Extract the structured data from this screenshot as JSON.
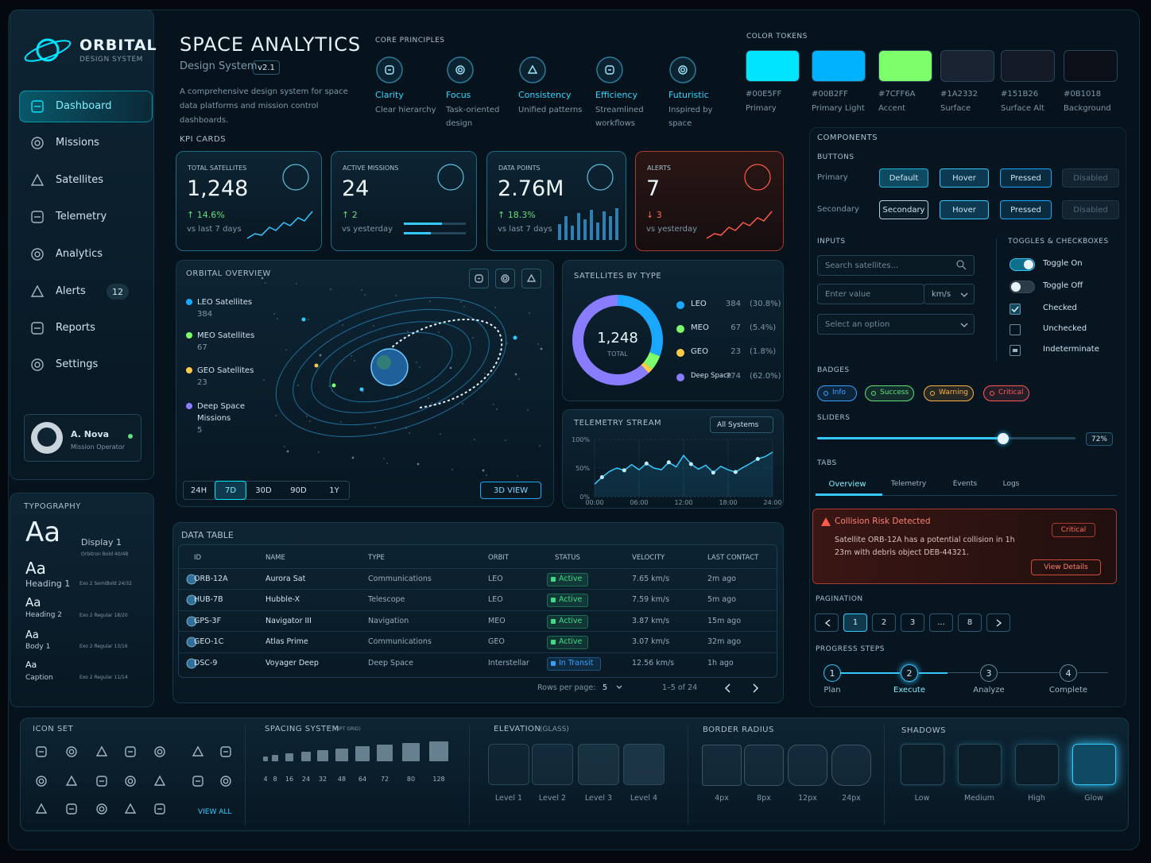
{
  "sidebar": {
    "brand": "ORBITAL",
    "brand_sub": "DESIGN SYSTEM",
    "nav": [
      {
        "label": "Dashboard"
      },
      {
        "label": "Missions"
      },
      {
        "label": "Satellites"
      },
      {
        "label": "Telemetry"
      },
      {
        "label": "Analytics"
      },
      {
        "label": "Alerts",
        "badge": 12
      },
      {
        "label": "Reports"
      },
      {
        "label": "Settings"
      }
    ],
    "user": {
      "name": "A. Nova",
      "role": "Mission Operator"
    }
  },
  "typography": {
    "title": "TYPOGRAPHY",
    "samples": [
      {
        "sample": "Aa",
        "name": "Display 1",
        "spec": "Orbitron Bold  40/48"
      },
      {
        "sample": "Aa",
        "name": "Heading 1",
        "spec": "Exo 2 SemiBold  24/32"
      },
      {
        "sample": "Aa",
        "name": "Heading 2",
        "spec": "Exo 2 Regular  18/20"
      },
      {
        "sample": "Aa",
        "name": "Body 1",
        "spec": "Exo 2 Regular  13/16"
      },
      {
        "sample": "Aa",
        "name": "Caption",
        "spec": "Exo 2 Regular  11/14"
      }
    ]
  },
  "header": {
    "title": "SPACE ANALYTICS",
    "subtitle": "Design System",
    "version": "v2.1",
    "description": "A comprehensive design system for space data platforms and mission control dashboards."
  },
  "core_principles": {
    "title": "CORE PRINCIPLES",
    "items": [
      {
        "name": "Clarity",
        "desc": "Clear hierarchy"
      },
      {
        "name": "Focus",
        "desc": "Task-oriented design"
      },
      {
        "name": "Consistency",
        "desc": "Unified patterns"
      },
      {
        "name": "Efficiency",
        "desc": "Streamlined workflows"
      },
      {
        "name": "Futuristic",
        "desc": "Inspired by space"
      }
    ]
  },
  "color_tokens": {
    "title": "COLOR TOKENS",
    "items": [
      {
        "hex": "#00E5FF",
        "name": "Primary"
      },
      {
        "hex": "#00B2FF",
        "name": "Primary Light"
      },
      {
        "hex": "#7CFF6A",
        "name": "Accent"
      },
      {
        "hex": "#1A2332",
        "name": "Surface"
      },
      {
        "hex": "#151B26",
        "name": "Surface Alt"
      },
      {
        "hex": "#0B1018",
        "name": "Background"
      }
    ]
  },
  "kpi_cards": {
    "title": "KPI CARDS",
    "cards": [
      {
        "label": "TOTAL SATELLITES",
        "value": "1,248",
        "change": "↑ 14.6%",
        "note": "vs last 7 days"
      },
      {
        "label": "ACTIVE MISSIONS",
        "value": "24",
        "change": "↑ 2",
        "note": "vs yesterday"
      },
      {
        "label": "DATA POINTS",
        "value": "2.76M",
        "change": "↑ 18.3%",
        "note": "vs last 7 days"
      },
      {
        "label": "ALERTS",
        "value": "7",
        "change": "↓ 3",
        "note": "vs yesterday"
      }
    ]
  },
  "orbital_overview": {
    "title": "ORBITAL OVERVIEW",
    "legend": [
      {
        "name": "LEO Satellites",
        "count": 384,
        "color": "#1aa8ff"
      },
      {
        "name": "MEO Satellites",
        "count": 67,
        "color": "#7cff6a"
      },
      {
        "name": "GEO Satellites",
        "count": 23,
        "color": "#ffc94a"
      },
      {
        "name": "Deep Space Missions",
        "count": 5,
        "color": "#8a7cff"
      }
    ],
    "ranges": [
      "24H",
      "7D",
      "30D",
      "90D",
      "1Y"
    ],
    "active_range": 1,
    "button": "3D VIEW"
  },
  "satellites_by_type": {
    "title": "SATELLITES BY TYPE",
    "total": "1,248",
    "total_label": "TOTAL",
    "series": [
      {
        "name": "LEO",
        "value": 384,
        "pct": "(30.8%)",
        "color": "#1aa8ff"
      },
      {
        "name": "MEO",
        "value": 67,
        "pct": "(5.4%)",
        "color": "#7cff6a"
      },
      {
        "name": "GEO",
        "value": 23,
        "pct": "(1.8%)",
        "color": "#ffc94a"
      },
      {
        "name": "Deep Space",
        "value": 774,
        "pct": "(62.0%)",
        "color": "#8a7cff"
      }
    ]
  },
  "telemetry": {
    "title": "TELEMETRY STREAM",
    "filter": "All Systems",
    "color": "#35c8ff",
    "x": [
      0,
      1,
      2,
      3,
      4,
      5,
      6,
      7,
      8,
      9,
      10,
      11,
      12,
      13,
      14,
      15,
      16,
      17,
      18,
      19,
      20,
      21,
      22,
      23,
      24
    ],
    "values": [
      22,
      34,
      44,
      50,
      46,
      56,
      47,
      58,
      50,
      47,
      60,
      52,
      72,
      57,
      48,
      55,
      42,
      53,
      47,
      43,
      51,
      58,
      66,
      70,
      78
    ],
    "xlim": [
      0,
      24
    ],
    "xticks": [
      {
        "value": 0,
        "label": "00:00"
      },
      {
        "value": 6,
        "label": "06:00"
      },
      {
        "value": 12,
        "label": "12:00"
      },
      {
        "value": 18,
        "label": "18:00"
      },
      {
        "value": 24,
        "label": "24:00"
      }
    ],
    "ylim": [
      0,
      100
    ],
    "yticks": [
      {
        "value": 0,
        "label": "0%"
      },
      {
        "value": 50,
        "label": "50%"
      },
      {
        "value": 100,
        "label": "100%"
      }
    ]
  },
  "data_table": {
    "title": "DATA TABLE",
    "columns": [
      "ID",
      "NAME",
      "TYPE",
      "ORBIT",
      "STATUS",
      "VELOCITY",
      "LAST CONTACT"
    ],
    "rows": [
      [
        "ORB-12A",
        "Aurora Sat",
        "Communications",
        "LEO",
        "Active",
        "7.65 km/s",
        "2m ago"
      ],
      [
        "HUB-7B",
        "Hubble-X",
        "Telescope",
        "LEO",
        "Active",
        "7.59 km/s",
        "5m ago"
      ],
      [
        "GPS-3F",
        "Navigator III",
        "Navigation",
        "MEO",
        "Active",
        "3.87 km/s",
        "15m ago"
      ],
      [
        "GEO-1C",
        "Atlas Prime",
        "Communications",
        "GEO",
        "Active",
        "3.07 km/s",
        "32m ago"
      ],
      [
        "DSC-9",
        "Voyager Deep",
        "Deep Space",
        "Interstellar",
        "In Transit",
        "12.56 km/s",
        "1h ago"
      ]
    ],
    "status_colors": [
      "#3ddc84",
      "#3ddc84",
      "#3ddc84",
      "#3ddc84",
      "#3aa0ff"
    ],
    "rows_per_page_label": "Rows per page:",
    "rows_per_page": 5,
    "range": "1–5 of 24"
  },
  "components": {
    "title": "COMPONENTS",
    "buttons": {
      "title": "BUTTONS",
      "rows": [
        {
          "label": "Primary",
          "states": [
            "Default",
            "Hover",
            "Pressed",
            "Disabled"
          ]
        },
        {
          "label": "Secondary",
          "states": [
            "Secondary",
            "Hover",
            "Pressed",
            "Disabled"
          ]
        }
      ]
    },
    "inputs": {
      "title": "INPUTS",
      "search": "Search satellites...",
      "value_placeholder": "Enter value",
      "unit": "km/s",
      "select": "Select an option"
    },
    "toggles": {
      "title": "TOGGLES & CHECKBOXES",
      "items": [
        "Toggle On",
        "Toggle Off",
        "Checked",
        "Unchecked",
        "Indeterminate"
      ]
    },
    "badges": {
      "title": "BADGES",
      "items": [
        {
          "label": "Info",
          "color": "#3aa0ff"
        },
        {
          "label": "Success",
          "color": "#5fe07a"
        },
        {
          "label": "Warning",
          "color": "#ffb340"
        },
        {
          "label": "Critical",
          "color": "#ff5a5a"
        }
      ]
    },
    "sliders": {
      "title": "SLIDERS",
      "value": 72,
      "label": "72%"
    },
    "tabs": {
      "title": "TABS",
      "items": [
        "Overview",
        "Telemetry",
        "Events",
        "Logs"
      ],
      "active": 0
    },
    "alert": {
      "title": "Collision Risk Detected",
      "severity": "Critical",
      "message": "Satellite ORB-12A has a potential collision in 1h 23m with debris object DEB-44321.",
      "action": "View Details"
    },
    "pagination": {
      "title": "PAGINATION",
      "pages": [
        "1",
        "2",
        "3",
        "...",
        "8"
      ],
      "active": 0
    },
    "progress_steps": {
      "title": "PROGRESS STEPS",
      "steps": [
        {
          "number": 1,
          "label": "Plan"
        },
        {
          "number": 2,
          "label": "Execute"
        },
        {
          "number": 3,
          "label": "Analyze"
        },
        {
          "number": 4,
          "label": "Complete"
        }
      ],
      "active": 1
    }
  },
  "bottom": {
    "icon_set": {
      "title": "ICON SET",
      "link": "VIEW ALL"
    },
    "spacing": {
      "title": "SPACING SYSTEM",
      "note": "(8PT GRID)",
      "values": [
        4,
        8,
        16,
        24,
        32,
        48,
        64,
        72,
        80,
        128
      ]
    },
    "elevation": {
      "title": "ELEVATION",
      "note": "(GLASS)",
      "levels": [
        "Level 1",
        "Level 2",
        "Level 3",
        "Level 4"
      ]
    },
    "border_radius": {
      "title": "BORDER RADIUS",
      "items": [
        "4px",
        "8px",
        "12px",
        "24px"
      ]
    },
    "shadows": {
      "title": "SHADOWS",
      "items": [
        "Low",
        "Medium",
        "High",
        "Glow"
      ]
    }
  }
}
